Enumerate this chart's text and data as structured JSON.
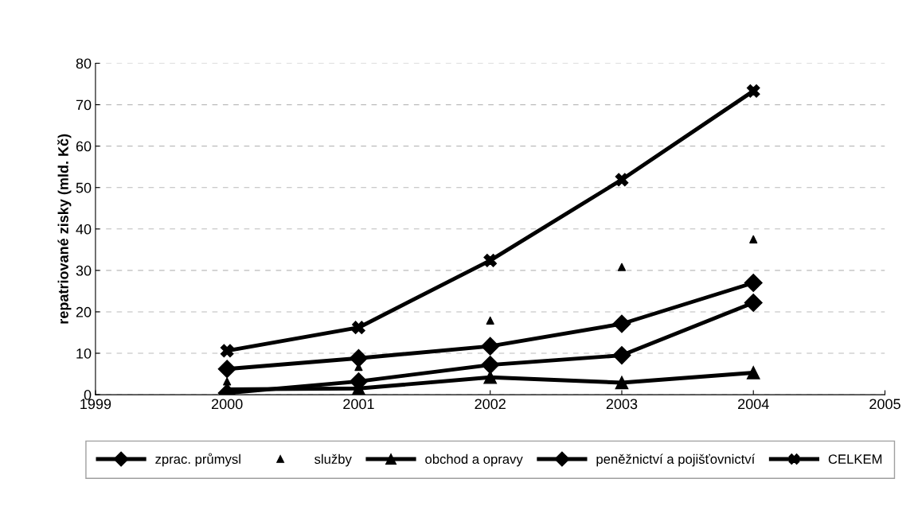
{
  "chart_data": {
    "type": "line",
    "ylabel": "repatriované zisky (mld. Kč)",
    "x": [
      2000,
      2001,
      2002,
      2003,
      2004
    ],
    "xlim": [
      1999,
      2005
    ],
    "xticks": [
      1999,
      2000,
      2001,
      2002,
      2003,
      2004,
      2005
    ],
    "ylim": [
      0,
      80
    ],
    "yticks": [
      0,
      10,
      20,
      30,
      40,
      50,
      60,
      70,
      80
    ],
    "grid": "y",
    "legend": "bottom",
    "line_style": "solid",
    "series": [
      {
        "name": "zprac. průmysl",
        "color": "#000000",
        "marker": "diamond",
        "values": [
          6.2,
          8.8,
          11.7,
          17.1,
          27.0
        ]
      },
      {
        "name": "služby",
        "color": "#000000",
        "type": "scatter",
        "marker": "triangle",
        "values": [
          3.2,
          6.7,
          17.9,
          30.8,
          37.5
        ]
      },
      {
        "name": "obchod a opravy",
        "color": "#000000",
        "marker": "triangle",
        "values": [
          1.3,
          1.5,
          4.2,
          2.9,
          5.3
        ]
      },
      {
        "name": "peněžnictví a pojišťovnictví",
        "color": "#000000",
        "marker": "diamond",
        "values": [
          0.4,
          3.2,
          7.2,
          9.5,
          22.2
        ]
      },
      {
        "name": "CELKEM",
        "color": "#000000",
        "marker": "cross",
        "values": [
          10.6,
          16.2,
          32.4,
          51.9,
          73.3
        ]
      }
    ]
  }
}
